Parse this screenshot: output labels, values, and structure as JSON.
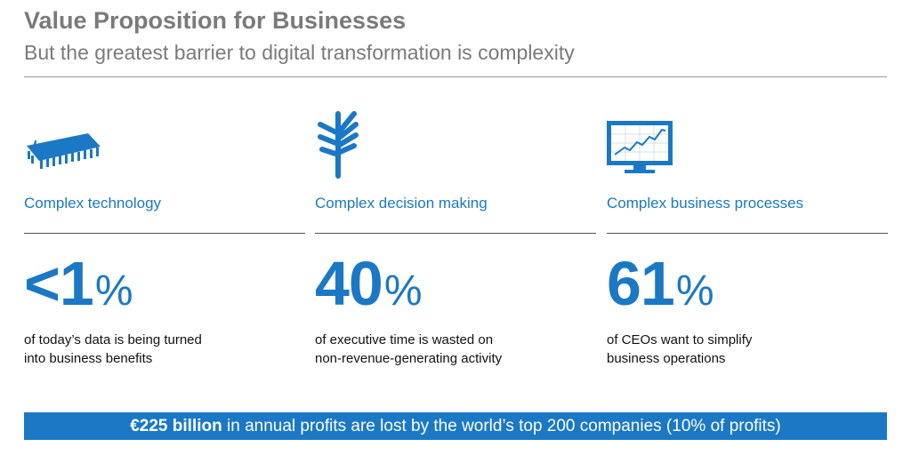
{
  "header": {
    "title": "Value Proposition for Businesses",
    "subtitle": "But the greatest barrier to digital transformation is complexity"
  },
  "accent_color": "#1b78c4",
  "columns": [
    {
      "icon": "chip-icon",
      "label": "Complex technology",
      "stat_value": "<1",
      "stat_unit": "%",
      "desc_line1": "of today’s data is being turned",
      "desc_line2": "into business benefits"
    },
    {
      "icon": "signpost-icon",
      "label": "Complex decision making",
      "stat_value": "40",
      "stat_unit": "%",
      "desc_line1": "of executive time is wasted on",
      "desc_line2": "non-revenue-generating activity"
    },
    {
      "icon": "monitor-chart-icon",
      "label": "Complex business processes",
      "stat_value": "61",
      "stat_unit": "%",
      "desc_line1": "of CEOs want to simplify",
      "desc_line2": "business operations"
    }
  ],
  "banner": {
    "bold": "€225 billion",
    "rest": " in annual profits are lost by the world’s top 200 companies (10% of profits)"
  }
}
